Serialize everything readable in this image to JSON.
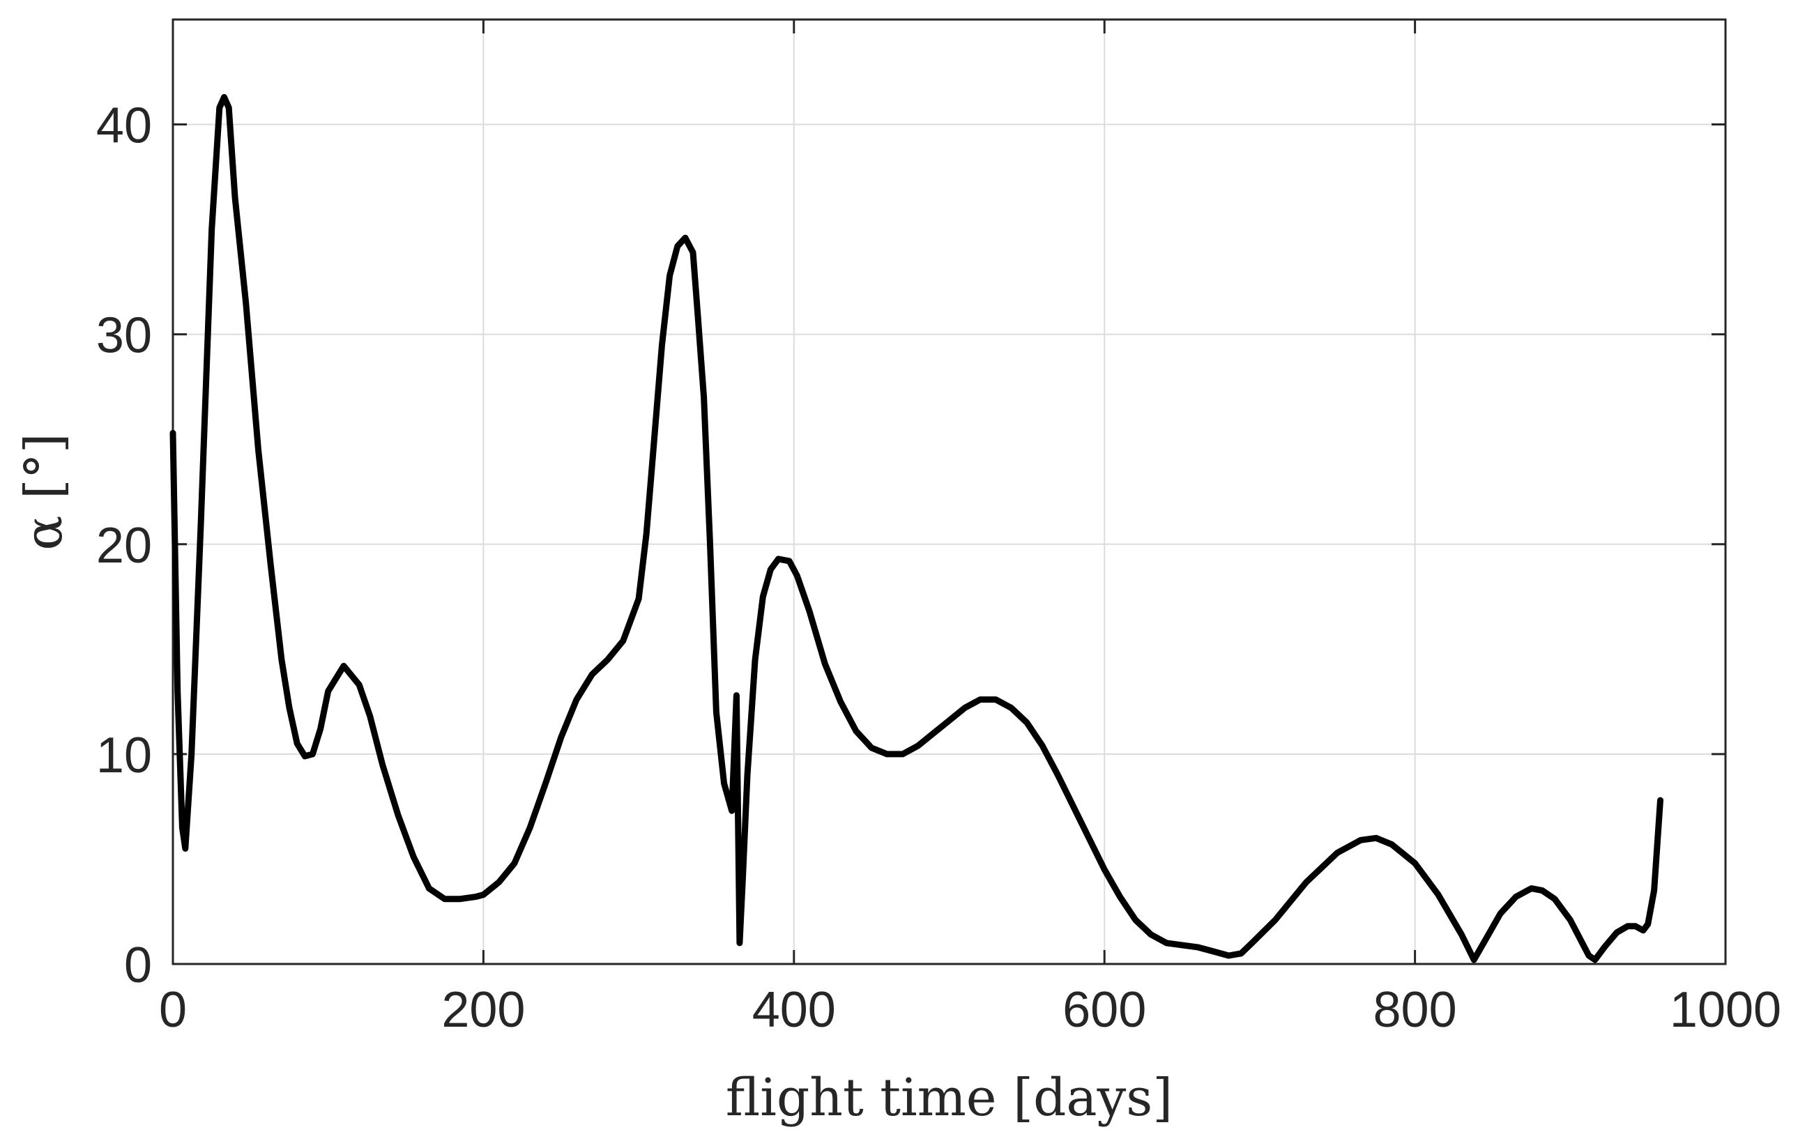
{
  "chart_data": {
    "type": "line",
    "xlabel": "flight time [days]",
    "ylabel": "α [°]",
    "xlim": [
      0,
      1000
    ],
    "ylim": [
      0,
      45
    ],
    "xticks": [
      0,
      200,
      400,
      600,
      800,
      1000
    ],
    "yticks": [
      0,
      10,
      20,
      30,
      40
    ],
    "grid": true,
    "colors": {
      "line": "#000000",
      "axis": "#262626",
      "grid": "#dcdcdc"
    },
    "series": [
      {
        "x": [
          0,
          3,
          6,
          8,
          12,
          18,
          25,
          30,
          33,
          36,
          40,
          47,
          55,
          63,
          70,
          75,
          80,
          85,
          90,
          95,
          100,
          110,
          120,
          127,
          135,
          145,
          155,
          165,
          175,
          185,
          195,
          200,
          210,
          220,
          230,
          240,
          250,
          260,
          270,
          280,
          290,
          300,
          305,
          310,
          315,
          320,
          325,
          330,
          335,
          338,
          342,
          346,
          350,
          355,
          360,
          363,
          365,
          367,
          370,
          375,
          380,
          385,
          390,
          397,
          402,
          410,
          420,
          430,
          440,
          450,
          460,
          470,
          480,
          490,
          500,
          510,
          520,
          530,
          540,
          550,
          560,
          570,
          580,
          590,
          600,
          610,
          620,
          630,
          640,
          650,
          660,
          670,
          680,
          688,
          695,
          710,
          730,
          750,
          765,
          775,
          785,
          800,
          815,
          830,
          838,
          845,
          855,
          865,
          875,
          882,
          890,
          900,
          912,
          916,
          922,
          930,
          937,
          942,
          947,
          950,
          954,
          958
        ],
        "y": [
          25.3,
          13,
          6.5,
          5.5,
          10,
          21,
          35,
          40.8,
          41.3,
          40.8,
          36.5,
          31.5,
          24.5,
          19,
          14.5,
          12.2,
          10.5,
          9.9,
          10,
          11.2,
          13,
          14.2,
          13.3,
          11.8,
          9.5,
          7.1,
          5.1,
          3.6,
          3.1,
          3.1,
          3.2,
          3.3,
          3.9,
          4.8,
          6.5,
          8.6,
          10.8,
          12.6,
          13.8,
          14.5,
          15.4,
          17.4,
          20.5,
          25,
          29.5,
          32.8,
          34.2,
          34.6,
          33.9,
          31,
          27,
          20,
          12,
          8.6,
          7.3,
          12.8,
          1,
          4,
          9,
          14.5,
          17.5,
          18.8,
          19.3,
          19.2,
          18.5,
          16.8,
          14.3,
          12.5,
          11.1,
          10.3,
          10,
          10,
          10.4,
          11,
          11.6,
          12.2,
          12.6,
          12.6,
          12.2,
          11.5,
          10.4,
          9,
          7.5,
          6,
          4.5,
          3.2,
          2.1,
          1.4,
          1,
          0.9,
          0.8,
          0.6,
          0.4,
          0.5,
          1,
          2.1,
          3.9,
          5.3,
          5.9,
          6,
          5.7,
          4.8,
          3.3,
          1.4,
          0.2,
          1.1,
          2.4,
          3.2,
          3.6,
          3.5,
          3.1,
          2.1,
          0.4,
          0.2,
          0.8,
          1.5,
          1.8,
          1.8,
          1.6,
          1.9,
          3.5,
          7.8
        ]
      }
    ]
  }
}
